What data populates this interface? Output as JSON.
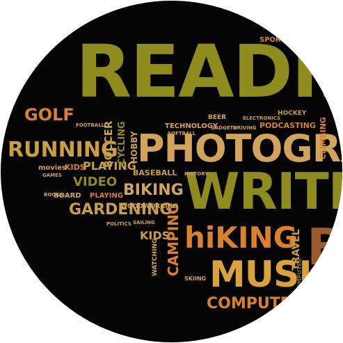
{
  "colors": {
    "background": "#050505",
    "olive": "#8f8c1e",
    "orange": "#d9822b",
    "tan": "#d2a35a",
    "brown": "#9a5a2a",
    "gold": "#c9a040",
    "dim": "#7a6a45"
  },
  "words": {
    "reading": "READIN",
    "photography": "PHOTOGRA",
    "writing": "WRITIN",
    "music": "MUSIC",
    "hiking": "hiKING",
    "running": "RUNNING",
    "golf": "GOLF",
    "gardening": "GARDENING",
    "biking": "BIKING",
    "video": "VIDEO",
    "playing": "PLAYING",
    "computers": "COMPUTERS",
    "camping": "CAMPING",
    "kids": "KIDS",
    "kids2": "KIDS",
    "soccer": "SOCCER",
    "cycling": "CYCLING",
    "baseball": "BASEBALL",
    "woodworking": "WOODWORKING",
    "technology": "TECHNOLOGY",
    "podcasting": "PODCASTING",
    "hobby": "HOBBY",
    "travel": "TRAVEL",
    "sports": "SPORTS",
    "hockey": "HOCKEY",
    "climbing": "CLIMBING",
    "playing2": "PLAYING",
    "movies": "movies",
    "board": "BOARD",
    "beer": "BEER",
    "skiing": "SKIING",
    "gadgets": "GADGETS",
    "driving": "DRIVING",
    "electronics": "ELECTRONICS",
    "softball": "SOFTBALL",
    "history": "HISTORY",
    "books": "BOOKS",
    "games": "GAMES",
    "football": "FOOTBALL",
    "politics": "POLITICS",
    "sailing": "SAILING",
    "watching": "WATCHING",
    "computer": "COMPUTER",
    "big_b": "B"
  }
}
